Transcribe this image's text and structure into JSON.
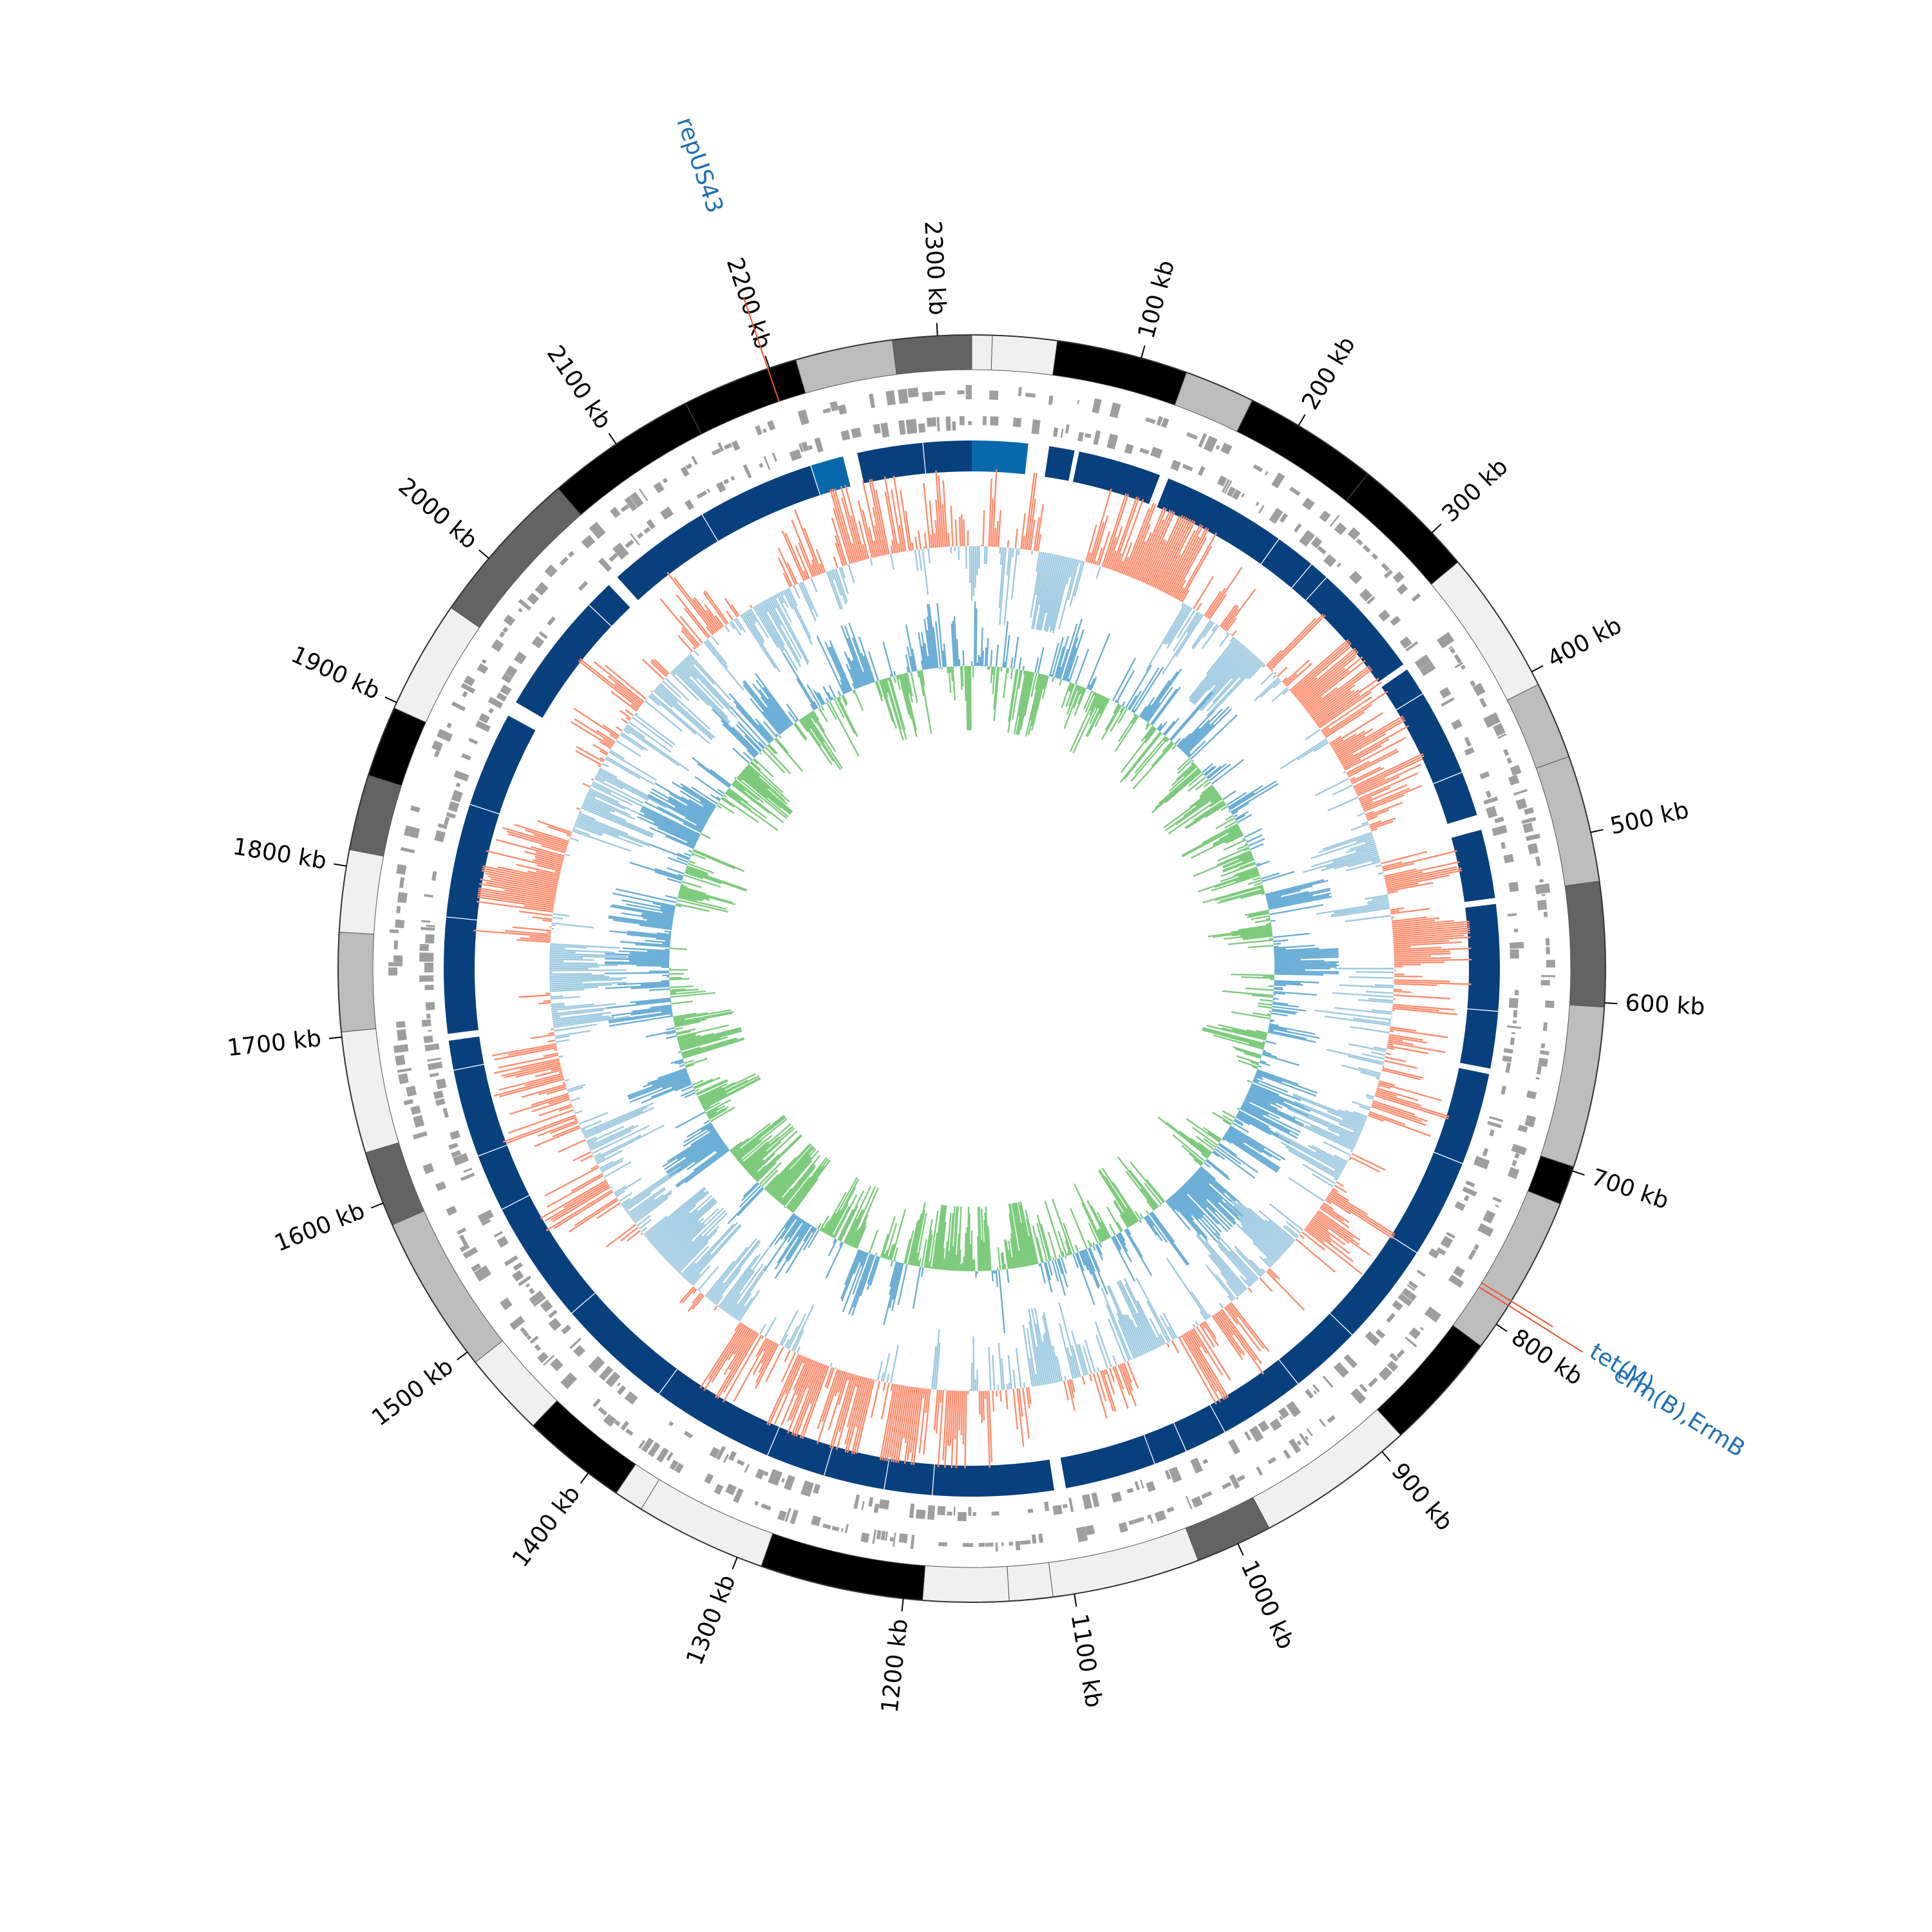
{
  "chart_data": {
    "type": "circos",
    "genome_length": 2320,
    "ticks": [
      {
        "value": 100,
        "label": "100 kb"
      },
      {
        "value": 200,
        "label": "200 kb"
      },
      {
        "value": 300,
        "label": "300 kb"
      },
      {
        "value": 400,
        "label": "400 kb"
      },
      {
        "value": 500,
        "label": "500 kb"
      },
      {
        "value": 600,
        "label": "600 kb"
      },
      {
        "value": 700,
        "label": "700 kb"
      },
      {
        "value": 800,
        "label": "800 kb"
      },
      {
        "value": 900,
        "label": "900 kb"
      },
      {
        "value": 1000,
        "label": "1000 kb"
      },
      {
        "value": 1100,
        "label": "1100 kb"
      },
      {
        "value": 1200,
        "label": "1200 kb"
      },
      {
        "value": 1300,
        "label": "1300 kb"
      },
      {
        "value": 1400,
        "label": "1400 kb"
      },
      {
        "value": 1500,
        "label": "1500 kb"
      },
      {
        "value": 1600,
        "label": "1600 kb"
      },
      {
        "value": 1700,
        "label": "1700 kb"
      },
      {
        "value": 1800,
        "label": "1800 kb"
      },
      {
        "value": 1900,
        "label": "1900 kb"
      },
      {
        "value": 2000,
        "label": "2000 kb"
      },
      {
        "value": 2100,
        "label": "2100 kb"
      },
      {
        "value": 2200,
        "label": "2200 kb"
      },
      {
        "value": 2300,
        "label": "2300 kb"
      }
    ],
    "annotations": [
      {
        "name": "repUS43",
        "position": 2199
      },
      {
        "name": "tet(M)",
        "position": 784
      },
      {
        "name": "erm(B),ErmB",
        "position": 787
      }
    ]
  }
}
